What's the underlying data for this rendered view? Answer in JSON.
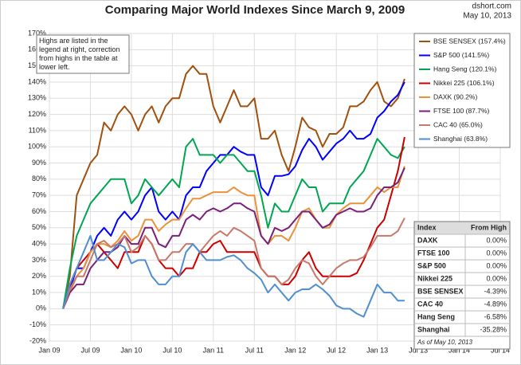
{
  "chart_data": {
    "type": "line",
    "title": "Comparing Major World Indexes Since March 9, 2009",
    "source": "dshort.com",
    "date": "May 10, 2013",
    "annotation": "Highs are listed in the legend at right, correction from highs in the table at lower left.",
    "x": [
      "2009-03",
      "2009-04",
      "2009-05",
      "2009-06",
      "2009-07",
      "2009-08",
      "2009-09",
      "2009-10",
      "2009-11",
      "2009-12",
      "2010-01",
      "2010-02",
      "2010-03",
      "2010-04",
      "2010-05",
      "2010-06",
      "2010-07",
      "2010-08",
      "2010-09",
      "2010-10",
      "2010-11",
      "2010-12",
      "2011-01",
      "2011-02",
      "2011-03",
      "2011-04",
      "2011-05",
      "2011-06",
      "2011-07",
      "2011-08",
      "2011-09",
      "2011-10",
      "2011-11",
      "2011-12",
      "2012-01",
      "2012-02",
      "2012-03",
      "2012-04",
      "2012-05",
      "2012-06",
      "2012-07",
      "2012-08",
      "2012-09",
      "2012-10",
      "2012-11",
      "2012-12",
      "2013-01",
      "2013-02",
      "2013-03",
      "2013-04",
      "2013-05"
    ],
    "xlim": [
      "2009-01",
      "2014-07"
    ],
    "xticks": [
      {
        "value": "2009-01",
        "label": "Jan 09"
      },
      {
        "value": "2009-07",
        "label": "Jul 09"
      },
      {
        "value": "2010-01",
        "label": "Jan 10"
      },
      {
        "value": "2010-07",
        "label": "Jul 10"
      },
      {
        "value": "2011-01",
        "label": "Jan 11"
      },
      {
        "value": "2011-07",
        "label": "Jul 11"
      },
      {
        "value": "2012-01",
        "label": "Jan 12"
      },
      {
        "value": "2012-07",
        "label": "Jul 12"
      },
      {
        "value": "2013-01",
        "label": "Jan 13"
      },
      {
        "value": "2013-07",
        "label": "Jul 13"
      },
      {
        "value": "2014-01",
        "label": "Jan 14"
      },
      {
        "value": "2014-07",
        "label": "Jul 14"
      }
    ],
    "ylim": [
      -20,
      170
    ],
    "yticks": [
      {
        "value": -20,
        "label": "-20%"
      },
      {
        "value": -10,
        "label": "-10%"
      },
      {
        "value": 0,
        "label": "0%"
      },
      {
        "value": 10,
        "label": "10%"
      },
      {
        "value": 20,
        "label": "20%"
      },
      {
        "value": 30,
        "label": "30%"
      },
      {
        "value": 40,
        "label": "40%"
      },
      {
        "value": 50,
        "label": "50%"
      },
      {
        "value": 60,
        "label": "60%"
      },
      {
        "value": 70,
        "label": "70%"
      },
      {
        "value": 80,
        "label": "80%"
      },
      {
        "value": 90,
        "label": "90%"
      },
      {
        "value": 100,
        "label": "100%"
      },
      {
        "value": 110,
        "label": "110%"
      },
      {
        "value": 120,
        "label": "120%"
      },
      {
        "value": 130,
        "label": "130%"
      },
      {
        "value": 140,
        "label": "140%"
      },
      {
        "value": 150,
        "label": "150%"
      },
      {
        "value": 160,
        "label": "160%"
      },
      {
        "value": 170,
        "label": "170%"
      }
    ],
    "grid": true,
    "legend": "top-right",
    "series": [
      {
        "name": "BSE SENSEX (157.4%)",
        "color": "#a0500f",
        "values": [
          0,
          20,
          70,
          80,
          90,
          95,
          115,
          110,
          120,
          125,
          120,
          110,
          120,
          125,
          115,
          125,
          130,
          130,
          145,
          150,
          145,
          145,
          125,
          115,
          125,
          135,
          125,
          125,
          130,
          105,
          105,
          110,
          95,
          85,
          100,
          118,
          112,
          110,
          100,
          108,
          108,
          112,
          125,
          125,
          128,
          135,
          140,
          128,
          125,
          130,
          142
        ]
      },
      {
        "name": "S&P 500 (141.5%)",
        "color": "#0000ff",
        "values": [
          0,
          12,
          25,
          25,
          35,
          45,
          50,
          45,
          55,
          60,
          55,
          60,
          70,
          75,
          60,
          55,
          60,
          55,
          70,
          75,
          75,
          85,
          90,
          95,
          95,
          100,
          97,
          95,
          95,
          75,
          70,
          82,
          82,
          83,
          88,
          98,
          105,
          100,
          92,
          97,
          102,
          105,
          110,
          105,
          105,
          108,
          118,
          122,
          128,
          132,
          140
        ]
      },
      {
        "name": "Hang Seng (120.1%)",
        "color": "#00a651",
        "values": [
          0,
          25,
          45,
          55,
          65,
          70,
          75,
          80,
          80,
          80,
          65,
          70,
          80,
          75,
          70,
          75,
          80,
          75,
          100,
          105,
          95,
          95,
          95,
          90,
          95,
          95,
          90,
          85,
          85,
          70,
          50,
          65,
          60,
          60,
          70,
          80,
          75,
          75,
          60,
          65,
          65,
          65,
          75,
          80,
          85,
          95,
          105,
          100,
          95,
          93,
          100
        ]
      },
      {
        "name": "Nikkei 225 (106.1%)",
        "color": "#cc0000",
        "values": [
          0,
          15,
          25,
          30,
          35,
          40,
          35,
          30,
          25,
          35,
          35,
          35,
          45,
          40,
          30,
          25,
          25,
          20,
          25,
          25,
          35,
          35,
          40,
          42,
          35,
          35,
          35,
          35,
          35,
          25,
          20,
          20,
          15,
          15,
          20,
          30,
          35,
          25,
          20,
          20,
          20,
          20,
          20,
          22,
          30,
          40,
          50,
          55,
          70,
          85,
          106
        ]
      },
      {
        "name": "DAXK (90.2%)",
        "color": "#e8923a",
        "values": [
          0,
          10,
          20,
          25,
          35,
          40,
          40,
          38,
          42,
          48,
          42,
          45,
          55,
          55,
          48,
          52,
          55,
          55,
          62,
          68,
          68,
          70,
          72,
          72,
          72,
          75,
          72,
          70,
          70,
          45,
          40,
          45,
          45,
          42,
          50,
          60,
          62,
          55,
          50,
          50,
          58,
          62,
          65,
          65,
          65,
          70,
          75,
          72,
          75,
          75,
          88
        ]
      },
      {
        "name": "FTSE 100 (87.7%)",
        "color": "#7a1f7a",
        "values": [
          0,
          10,
          15,
          15,
          25,
          30,
          35,
          35,
          38,
          45,
          40,
          40,
          50,
          50,
          40,
          38,
          45,
          45,
          55,
          58,
          55,
          60,
          62,
          60,
          62,
          65,
          65,
          62,
          60,
          45,
          40,
          50,
          48,
          50,
          55,
          60,
          60,
          55,
          50,
          52,
          58,
          60,
          62,
          60,
          60,
          62,
          70,
          75,
          75,
          78,
          87
        ]
      },
      {
        "name": "CAC 40 (65.0%)",
        "color": "#c8786a",
        "values": [
          0,
          12,
          20,
          20,
          30,
          40,
          42,
          38,
          40,
          45,
          35,
          38,
          45,
          40,
          30,
          30,
          35,
          35,
          40,
          40,
          35,
          40,
          45,
          48,
          45,
          50,
          48,
          45,
          42,
          25,
          20,
          20,
          15,
          18,
          25,
          30,
          28,
          20,
          15,
          20,
          25,
          28,
          30,
          30,
          32,
          38,
          45,
          45,
          45,
          48,
          56
        ]
      },
      {
        "name": "Shanghai (63.8%)",
        "color": "#4f8fd0",
        "values": [
          0,
          15,
          25,
          35,
          45,
          30,
          30,
          35,
          40,
          38,
          28,
          30,
          30,
          20,
          15,
          15,
          20,
          20,
          35,
          40,
          35,
          30,
          30,
          30,
          32,
          33,
          30,
          25,
          22,
          18,
          10,
          15,
          10,
          5,
          10,
          12,
          12,
          15,
          12,
          8,
          2,
          0,
          0,
          -3,
          -5,
          5,
          15,
          10,
          10,
          5,
          5
        ]
      }
    ],
    "table": {
      "header": [
        "Index",
        "From High"
      ],
      "rows": [
        [
          "DAXK",
          "0.00%"
        ],
        [
          "FTSE 100",
          "0.00%"
        ],
        [
          "S&P 500",
          "0.00%"
        ],
        [
          "Nikkei 225",
          "0.00%"
        ],
        [
          "BSE SENSEX",
          "-4.39%"
        ],
        [
          "CAC 40",
          "-4.89%"
        ],
        [
          "Hang Seng",
          "-6.58%"
        ],
        [
          "Shanghai",
          "-35.28%"
        ]
      ],
      "row_colors": [
        "#e8923a",
        "#7a1f7a",
        "#0000ff",
        "#cc0000",
        "#a0500f",
        "#c8786a",
        "#00a651",
        "#4f8fd0"
      ],
      "note": "As of May 10, 2013"
    }
  }
}
